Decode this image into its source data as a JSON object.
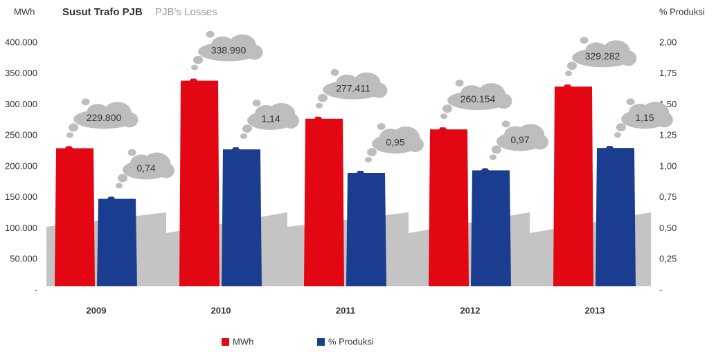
{
  "chart_data": {
    "type": "bar",
    "title": "Susut Trafo PJB",
    "subtitle": "PJB's Losses",
    "y_label": "MWh",
    "y2_label": "% Produksi",
    "categories": [
      "2009",
      "2010",
      "2011",
      "2012",
      "2013"
    ],
    "series": [
      {
        "name": "MWh",
        "color": "#e30613",
        "values": [
          229800,
          338990,
          277411,
          260154,
          329282
        ],
        "value_labels": [
          "229.800",
          "338.990",
          "277.411",
          "260.154",
          "329.282"
        ]
      },
      {
        "name": "% Produksi",
        "color": "#1a3d8f",
        "axis": "y2",
        "values": [
          0.74,
          1.14,
          0.95,
          0.97,
          1.15
        ],
        "value_labels": [
          "0,74",
          "1,14",
          "0,95",
          "0,97",
          "1,15"
        ]
      }
    ],
    "ylim": [
      0,
      400000
    ],
    "yticks": [
      {
        "value": 0,
        "label": "-"
      },
      {
        "value": 50000,
        "label": "50.000"
      },
      {
        "value": 100000,
        "label": "100.000"
      },
      {
        "value": 150000,
        "label": "150.000"
      },
      {
        "value": 200000,
        "label": "200.000"
      },
      {
        "value": 250000,
        "label": "250.000"
      },
      {
        "value": 300000,
        "label": "300.000"
      },
      {
        "value": 350000,
        "label": "350.000"
      },
      {
        "value": 400000,
        "label": "400.000"
      }
    ],
    "y2lim": [
      0,
      2
    ],
    "y2ticks": [
      {
        "value": 0,
        "label": "-"
      },
      {
        "value": 0.25,
        "label": "0,25"
      },
      {
        "value": 0.5,
        "label": "0,50"
      },
      {
        "value": 0.75,
        "label": "0,75"
      },
      {
        "value": 1,
        "label": "1,00"
      },
      {
        "value": 1.25,
        "label": "1,25"
      },
      {
        "value": 1.5,
        "label": "1,50"
      },
      {
        "value": 1.75,
        "label": "1,75"
      },
      {
        "value": 2,
        "label": "2,00"
      }
    ]
  }
}
